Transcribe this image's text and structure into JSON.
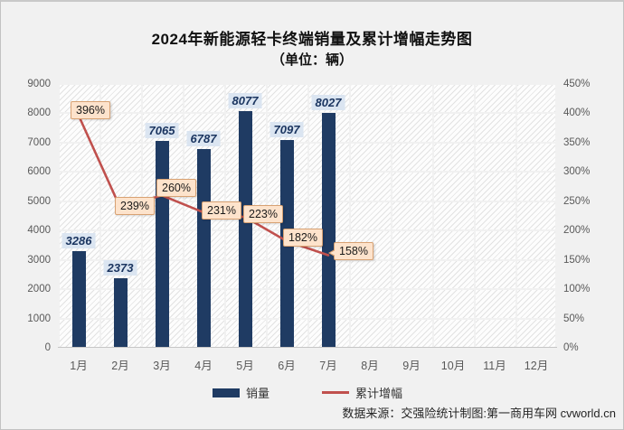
{
  "title": "2024年新能源轻卡终端销量及累计增幅走势图",
  "subtitle": "（单位：辆）",
  "footer": "数据来源：交强险统计制图:第一商用车网 cvworld.cn",
  "legend": {
    "sales": "销量",
    "growth": "累计增幅"
  },
  "colors": {
    "bar": "#1f3b63",
    "line": "#c0504d",
    "bar_label_bg": "#dbe5f1",
    "pct_label_bg": "#fde3cc",
    "pct_label_border": "#d8a273",
    "axis_text": "#595959",
    "background": "#f1f1f1"
  },
  "chart_data": {
    "type": "bar",
    "combo": "bar+line",
    "title": "2024年新能源轻卡终端销量及累计增幅走势图（单位：辆）",
    "categories": [
      "1月",
      "2月",
      "3月",
      "4月",
      "5月",
      "6月",
      "7月",
      "8月",
      "9月",
      "10月",
      "11月",
      "12月"
    ],
    "series": [
      {
        "name": "销量",
        "type": "bar",
        "axis": "left",
        "values": [
          3286,
          2373,
          7065,
          6787,
          8077,
          7097,
          8027,
          null,
          null,
          null,
          null,
          null
        ],
        "labels": [
          "3286",
          "2373",
          "7065",
          "6787",
          "8077",
          "7097",
          "8027"
        ]
      },
      {
        "name": "累计增幅",
        "type": "line",
        "axis": "right",
        "unit": "%",
        "values": [
          396,
          239,
          260,
          231,
          223,
          182,
          158,
          null,
          null,
          null,
          null,
          null
        ],
        "labels": [
          "396%",
          "239%",
          "260%",
          "231%",
          "223%",
          "182%",
          "158%"
        ]
      }
    ],
    "left_axis": {
      "min": 0,
      "max": 9000,
      "step": 1000,
      "tick_labels": [
        "0",
        "1000",
        "2000",
        "3000",
        "4000",
        "5000",
        "6000",
        "7000",
        "8000",
        "9000"
      ]
    },
    "right_axis": {
      "min": 0,
      "max": 450,
      "step": 50,
      "tick_labels": [
        "0%",
        "50%",
        "100%",
        "150%",
        "200%",
        "250%",
        "300%",
        "350%",
        "400%",
        "450%"
      ]
    },
    "grid": true,
    "legend_position": "bottom"
  }
}
